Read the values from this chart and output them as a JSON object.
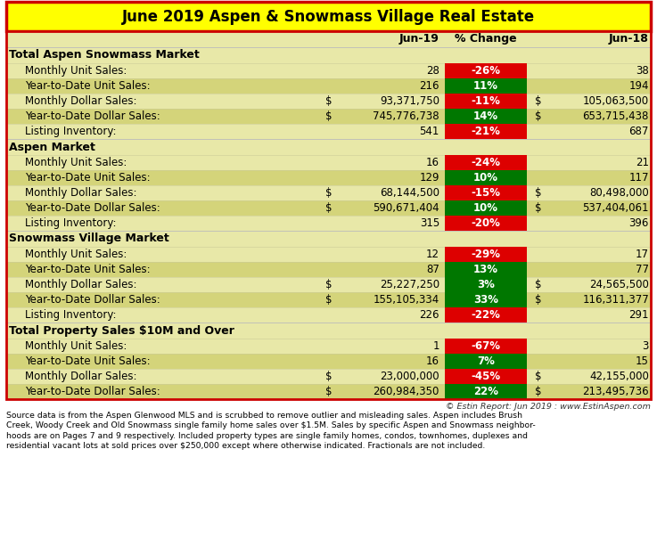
{
  "title": "June 2019 Aspen & Snowmass Village Real Estate",
  "sections": [
    {
      "header": "Total Aspen Snowmass Market",
      "rows": [
        {
          "label": "Monthly Unit Sales:",
          "jun19": "28",
          "pct": "-26%",
          "pct_color": "#DD0000",
          "jun18": "38",
          "dollar": false
        },
        {
          "label": "Year-to-Date Unit Sales:",
          "jun19": "216",
          "pct": "11%",
          "pct_color": "#007700",
          "jun18": "194",
          "dollar": false
        },
        {
          "label": "Monthly Dollar Sales:",
          "jun19": "93,371,750",
          "pct": "-11%",
          "pct_color": "#DD0000",
          "jun18": "105,063,500",
          "dollar": true
        },
        {
          "label": "Year-to-Date Dollar Sales:",
          "jun19": "745,776,738",
          "pct": "14%",
          "pct_color": "#007700",
          "jun18": "653,715,438",
          "dollar": true
        },
        {
          "label": "Listing Inventory:",
          "jun19": "541",
          "pct": "-21%",
          "pct_color": "#DD0000",
          "jun18": "687",
          "dollar": false
        }
      ]
    },
    {
      "header": "Aspen Market",
      "rows": [
        {
          "label": "Monthly Unit Sales:",
          "jun19": "16",
          "pct": "-24%",
          "pct_color": "#DD0000",
          "jun18": "21",
          "dollar": false
        },
        {
          "label": "Year-to-Date Unit Sales:",
          "jun19": "129",
          "pct": "10%",
          "pct_color": "#007700",
          "jun18": "117",
          "dollar": false
        },
        {
          "label": "Monthly Dollar Sales:",
          "jun19": "68,144,500",
          "pct": "-15%",
          "pct_color": "#DD0000",
          "jun18": "80,498,000",
          "dollar": true
        },
        {
          "label": "Year-to-Date Dollar Sales:",
          "jun19": "590,671,404",
          "pct": "10%",
          "pct_color": "#007700",
          "jun18": "537,404,061",
          "dollar": true
        },
        {
          "label": "Listing Inventory:",
          "jun19": "315",
          "pct": "-20%",
          "pct_color": "#DD0000",
          "jun18": "396",
          "dollar": false
        }
      ]
    },
    {
      "header": "Snowmass Village Market",
      "rows": [
        {
          "label": "Monthly Unit Sales:",
          "jun19": "12",
          "pct": "-29%",
          "pct_color": "#DD0000",
          "jun18": "17",
          "dollar": false
        },
        {
          "label": "Year-to-Date Unit Sales:",
          "jun19": "87",
          "pct": "13%",
          "pct_color": "#007700",
          "jun18": "77",
          "dollar": false
        },
        {
          "label": "Monthly Dollar Sales:",
          "jun19": "25,227,250",
          "pct": "3%",
          "pct_color": "#007700",
          "jun18": "24,565,500",
          "dollar": true
        },
        {
          "label": "Year-to-Date Dollar Sales:",
          "jun19": "155,105,334",
          "pct": "33%",
          "pct_color": "#007700",
          "jun18": "116,311,377",
          "dollar": true
        },
        {
          "label": "Listing Inventory:",
          "jun19": "226",
          "pct": "-22%",
          "pct_color": "#DD0000",
          "jun18": "291",
          "dollar": false
        }
      ]
    },
    {
      "header": "Total Property Sales $10M and Over",
      "rows": [
        {
          "label": "Monthly Unit Sales:",
          "jun19": "1",
          "pct": "-67%",
          "pct_color": "#DD0000",
          "jun18": "3",
          "dollar": false
        },
        {
          "label": "Year-to-Date Unit Sales:",
          "jun19": "16",
          "pct": "7%",
          "pct_color": "#007700",
          "jun18": "15",
          "dollar": false
        },
        {
          "label": "Monthly Dollar Sales:",
          "jun19": "23,000,000",
          "pct": "-45%",
          "pct_color": "#DD0000",
          "jun18": "42,155,000",
          "dollar": true
        },
        {
          "label": "Year-to-Date Dollar Sales:",
          "jun19": "260,984,350",
          "pct": "22%",
          "pct_color": "#007700",
          "jun18": "213,495,736",
          "dollar": true
        }
      ]
    }
  ],
  "footnote": "© Estin Report: Jun 2019 : www.EstinAspen.com",
  "source_text": "Source data is from the Aspen Glenwood MLS and is scrubbed to remove outlier and misleading sales. Aspen includes Brush\nCreek, Woody Creek and Old Snowmass single family home sales over $1.5M. Sales by specific Aspen and Snowmass neighbor-\nhoods are on Pages 7 and 9 respectively. Included property types are single family homes, condos, townhomes, duplexes and\nresidential vacant lots at sold prices over $250,000 except where otherwise indicated. Fractionals are not included.",
  "YELLOW": "#FFFF00",
  "RED_BORDER": "#CC0000",
  "BG_LIGHT": "#E8E8A8",
  "BG_ALT": "#D4D47A",
  "WHITE": "#FFFFFF"
}
